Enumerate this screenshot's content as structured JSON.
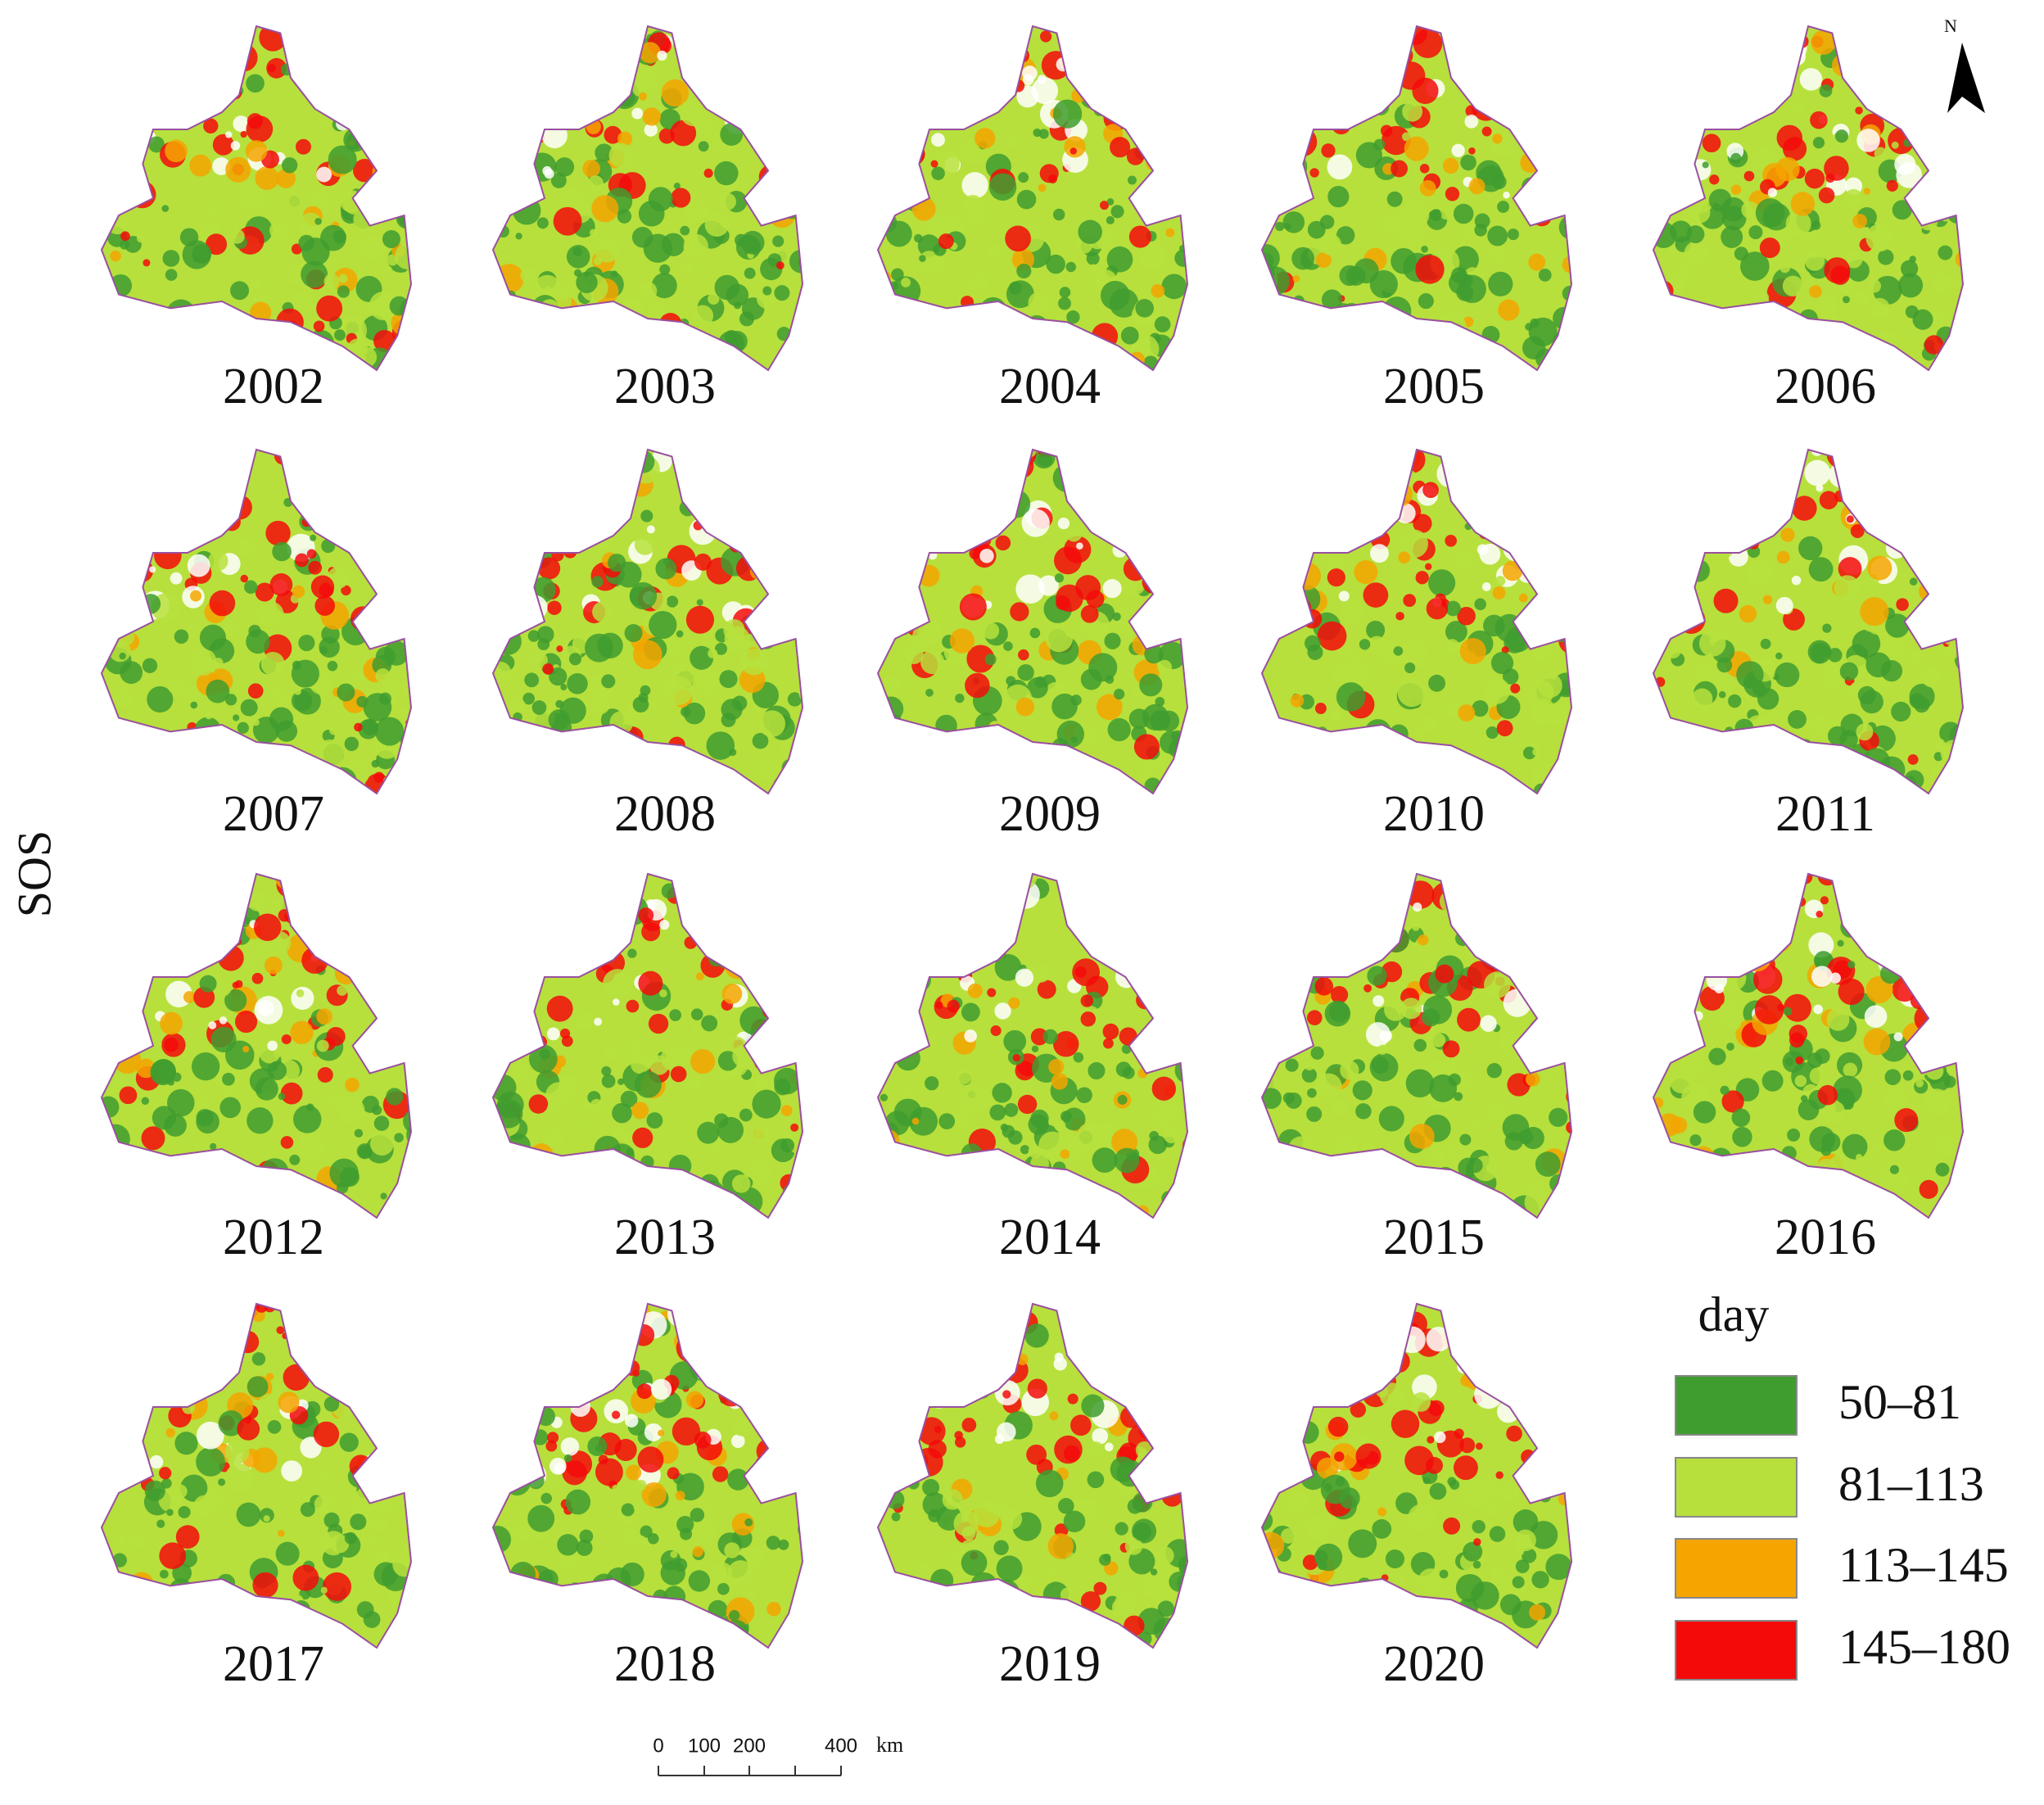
{
  "maps": [
    {
      "year": "2002"
    },
    {
      "year": "2003"
    },
    {
      "year": "2004"
    },
    {
      "year": "2005"
    },
    {
      "year": "2006"
    },
    {
      "year": "2007"
    },
    {
      "year": "2008"
    },
    {
      "year": "2009"
    },
    {
      "year": "2010"
    },
    {
      "year": "2011"
    },
    {
      "year": "2012"
    },
    {
      "year": "2013"
    },
    {
      "year": "2014"
    },
    {
      "year": "2015"
    },
    {
      "year": "2016"
    },
    {
      "year": "2017"
    },
    {
      "year": "2018"
    },
    {
      "year": "2019"
    },
    {
      "year": "2020"
    }
  ],
  "y_label": "SOS",
  "legend": {
    "title": "day",
    "items": [
      {
        "label": "50–81",
        "color": "#3f9c2f"
      },
      {
        "label": "81–113",
        "color": "#b7e03c"
      },
      {
        "label": "113–145",
        "color": "#f5a400"
      },
      {
        "label": "145–180",
        "color": "#f50a0a"
      }
    ]
  },
  "scale_bar": {
    "labels": [
      "0",
      "100",
      "200",
      "400"
    ],
    "unit": "km"
  },
  "north_label": "N"
}
